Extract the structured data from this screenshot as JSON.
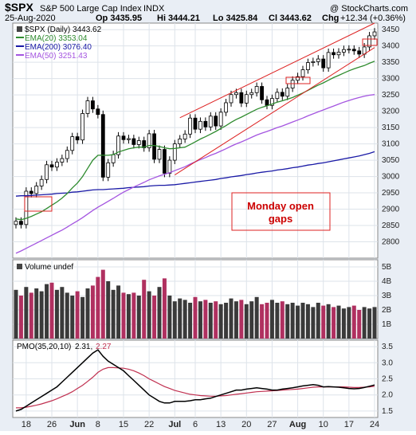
{
  "header": {
    "symbol": "$SPX",
    "name": "S&P 500 Large Cap Index",
    "exchange": "INDX",
    "brand": "@ StockCharts.com",
    "date": "25-Aug-2020",
    "op": "Op 3435.95",
    "hi": "Hi 3444.21",
    "lo": "Lo 3425.84",
    "cl": "Cl 3443.62",
    "chg_label": "Chg",
    "chg_value": "+12.34 (+0.36%)",
    "chg_color": "#cc0000"
  },
  "annotation": {
    "line1": "Monday open",
    "line2": "gaps",
    "color": "#cc0000"
  },
  "legend": {
    "price": "$SPX (Daily) 3443.62",
    "ema20": "EMA(20) 3353.04",
    "ema200": "EMA(200) 3076.40",
    "ema50": "EMA(50) 3251.43",
    "volume": "Volume undef",
    "pmo_label": "PMO(35,20,10)",
    "pmo_value": "2.31,",
    "pmo_signal": "2.27"
  },
  "colors": {
    "ema20": "#2e8b2e",
    "ema200": "#1a1aa6",
    "ema50": "#a455e0",
    "channel": "#dd2222",
    "up_volume": "#3a3a3a",
    "down_volume": "#b03060",
    "pmo": "#000000",
    "pmo_signal": "#c03050"
  },
  "chart_data": [
    {
      "type": "candlestick",
      "panel": "price",
      "x_tick_labels": [
        "18",
        "26",
        "Jun",
        "8",
        "15",
        "22",
        "Jul",
        "6",
        "13",
        "20",
        "27",
        "Aug",
        "10",
        "17",
        "24"
      ],
      "y_tick_labels": [
        "2800",
        "2850",
        "2900",
        "2950",
        "3000",
        "3050",
        "3100",
        "3150",
        "3200",
        "3250",
        "3300",
        "3350",
        "3400",
        "3450"
      ],
      "ylim": [
        2750,
        3470
      ],
      "close": [
        2863,
        2853,
        2955,
        2948,
        2971,
        2991,
        3036,
        3029,
        3044,
        3055,
        3080,
        3122,
        3112,
        3193,
        3232,
        3207,
        3190,
        2998,
        3042,
        3067,
        3124,
        3113,
        3116,
        3098,
        3110,
        3088,
        3131,
        3053,
        3083,
        3010,
        3050,
        3100,
        3115,
        3130,
        3179,
        3145,
        3169,
        3152,
        3185,
        3155,
        3197,
        3226,
        3251,
        3257,
        3225,
        3251,
        3257,
        3276,
        3235,
        3218,
        3239,
        3258,
        3246,
        3271,
        3295,
        3306,
        3327,
        3349,
        3352,
        3360,
        3333,
        3380,
        3373,
        3381,
        3389,
        3390,
        3385,
        3375,
        3397,
        3431,
        3443
      ],
      "ema20": [
        2870,
        2868,
        2872,
        2878,
        2885,
        2892,
        2902,
        2912,
        2922,
        2934,
        2948,
        2965,
        2980,
        3000,
        3025,
        3050,
        3065,
        3065,
        3065,
        3067,
        3075,
        3080,
        3085,
        3088,
        3090,
        3090,
        3095,
        3095,
        3092,
        3088,
        3085,
        3086,
        3088,
        3090,
        3098,
        3106,
        3115,
        3122,
        3130,
        3138,
        3147,
        3156,
        3166,
        3175,
        3182,
        3190,
        3198,
        3206,
        3212,
        3217,
        3222,
        3228,
        3232,
        3237,
        3242,
        3249,
        3256,
        3264,
        3272,
        3280,
        3287,
        3295,
        3303,
        3310,
        3317,
        3324,
        3330,
        3335,
        3340,
        3347,
        3353
      ],
      "ema50": [
        2765,
        2772,
        2780,
        2788,
        2796,
        2804,
        2812,
        2820,
        2828,
        2836,
        2845,
        2855,
        2864,
        2874,
        2885,
        2896,
        2906,
        2915,
        2924,
        2933,
        2943,
        2952,
        2960,
        2968,
        2975,
        2982,
        2990,
        2996,
        3002,
        3007,
        3012,
        3018,
        3024,
        3030,
        3038,
        3045,
        3052,
        3058,
        3065,
        3071,
        3078,
        3085,
        3093,
        3100,
        3106,
        3113,
        3120,
        3127,
        3133,
        3138,
        3144,
        3150,
        3155,
        3161,
        3167,
        3173,
        3179,
        3186,
        3192,
        3198,
        3204,
        3210,
        3216,
        3222,
        3228,
        3233,
        3238,
        3242,
        3246,
        3249,
        3251
      ],
      "ema200": [
        2940,
        2941,
        2941,
        2942,
        2943,
        2944,
        2945,
        2946,
        2948,
        2949,
        2950,
        2952,
        2953,
        2955,
        2957,
        2959,
        2960,
        2960,
        2961,
        2962,
        2963,
        2964,
        2966,
        2967,
        2968,
        2969,
        2971,
        2972,
        2973,
        2973,
        2974,
        2975,
        2977,
        2979,
        2981,
        2983,
        2985,
        2987,
        2989,
        2991,
        2994,
        2996,
        2999,
        3001,
        3003,
        3006,
        3008,
        3011,
        3013,
        3015,
        3017,
        3020,
        3022,
        3024,
        3027,
        3029,
        3032,
        3035,
        3037,
        3040,
        3042,
        3045,
        3048,
        3051,
        3054,
        3057,
        3060,
        3063,
        3067,
        3071,
        3076
      ]
    },
    {
      "type": "bar",
      "panel": "volume",
      "y_tick_labels": [
        "1B",
        "2B",
        "3B",
        "4B",
        "5B"
      ],
      "ylim": [
        0,
        5.5
      ],
      "values": [
        3.4,
        3.0,
        3.6,
        3.2,
        3.5,
        3.3,
        3.8,
        3.9,
        3.4,
        3.6,
        3.2,
        3.0,
        3.3,
        2.9,
        3.5,
        3.7,
        4.3,
        4.8,
        4.0,
        3.4,
        3.7,
        3.2,
        3.1,
        3.2,
        3.0,
        4.1,
        3.3,
        3.0,
        3.6,
        4.2,
        3.0,
        2.6,
        2.8,
        2.7,
        2.5,
        2.9,
        2.6,
        2.7,
        2.5,
        2.6,
        2.4,
        2.5,
        2.8,
        2.6,
        2.7,
        2.4,
        2.6,
        2.9,
        2.4,
        2.5,
        2.7,
        2.5,
        2.6,
        2.4,
        2.5,
        2.3,
        2.5,
        2.4,
        2.2,
        2.5,
        2.3,
        2.4,
        2.2,
        2.3,
        2.1,
        2.2,
        2.3,
        2.0,
        2.2,
        2.1,
        2.2
      ]
    },
    {
      "type": "line",
      "panel": "pmo",
      "y_tick_labels": [
        "1.5",
        "2.0",
        "2.5",
        "3.0",
        "3.5"
      ],
      "ylim": [
        1.3,
        3.7
      ],
      "pmo": [
        1.5,
        1.55,
        1.65,
        1.75,
        1.85,
        1.95,
        2.05,
        2.15,
        2.25,
        2.4,
        2.55,
        2.7,
        2.85,
        3.0,
        3.15,
        3.3,
        3.4,
        3.2,
        3.05,
        2.95,
        2.85,
        2.75,
        2.6,
        2.45,
        2.3,
        2.15,
        2.0,
        1.9,
        1.8,
        1.75,
        1.75,
        1.8,
        1.8,
        1.8,
        1.82,
        1.85,
        1.85,
        1.88,
        1.9,
        1.95,
        2.0,
        2.05,
        2.1,
        2.15,
        2.15,
        2.18,
        2.2,
        2.22,
        2.2,
        2.18,
        2.15,
        2.15,
        2.18,
        2.2,
        2.22,
        2.25,
        2.28,
        2.3,
        2.32,
        2.3,
        2.25,
        2.26,
        2.25,
        2.24,
        2.22,
        2.2,
        2.19,
        2.2,
        2.23,
        2.27,
        2.31
      ],
      "signal": [
        1.6,
        1.6,
        1.62,
        1.65,
        1.68,
        1.72,
        1.77,
        1.82,
        1.88,
        1.95,
        2.02,
        2.1,
        2.2,
        2.3,
        2.42,
        2.55,
        2.7,
        2.8,
        2.85,
        2.85,
        2.84,
        2.83,
        2.8,
        2.75,
        2.68,
        2.6,
        2.5,
        2.42,
        2.34,
        2.26,
        2.2,
        2.14,
        2.1,
        2.06,
        2.02,
        2.0,
        1.98,
        1.97,
        1.96,
        1.96,
        1.97,
        1.98,
        2.0,
        2.02,
        2.04,
        2.06,
        2.08,
        2.1,
        2.11,
        2.12,
        2.13,
        2.14,
        2.15,
        2.16,
        2.17,
        2.18,
        2.2,
        2.22,
        2.24,
        2.25,
        2.25,
        2.25,
        2.25,
        2.25,
        2.25,
        2.24,
        2.23,
        2.23,
        2.24,
        2.25,
        2.27
      ]
    }
  ]
}
